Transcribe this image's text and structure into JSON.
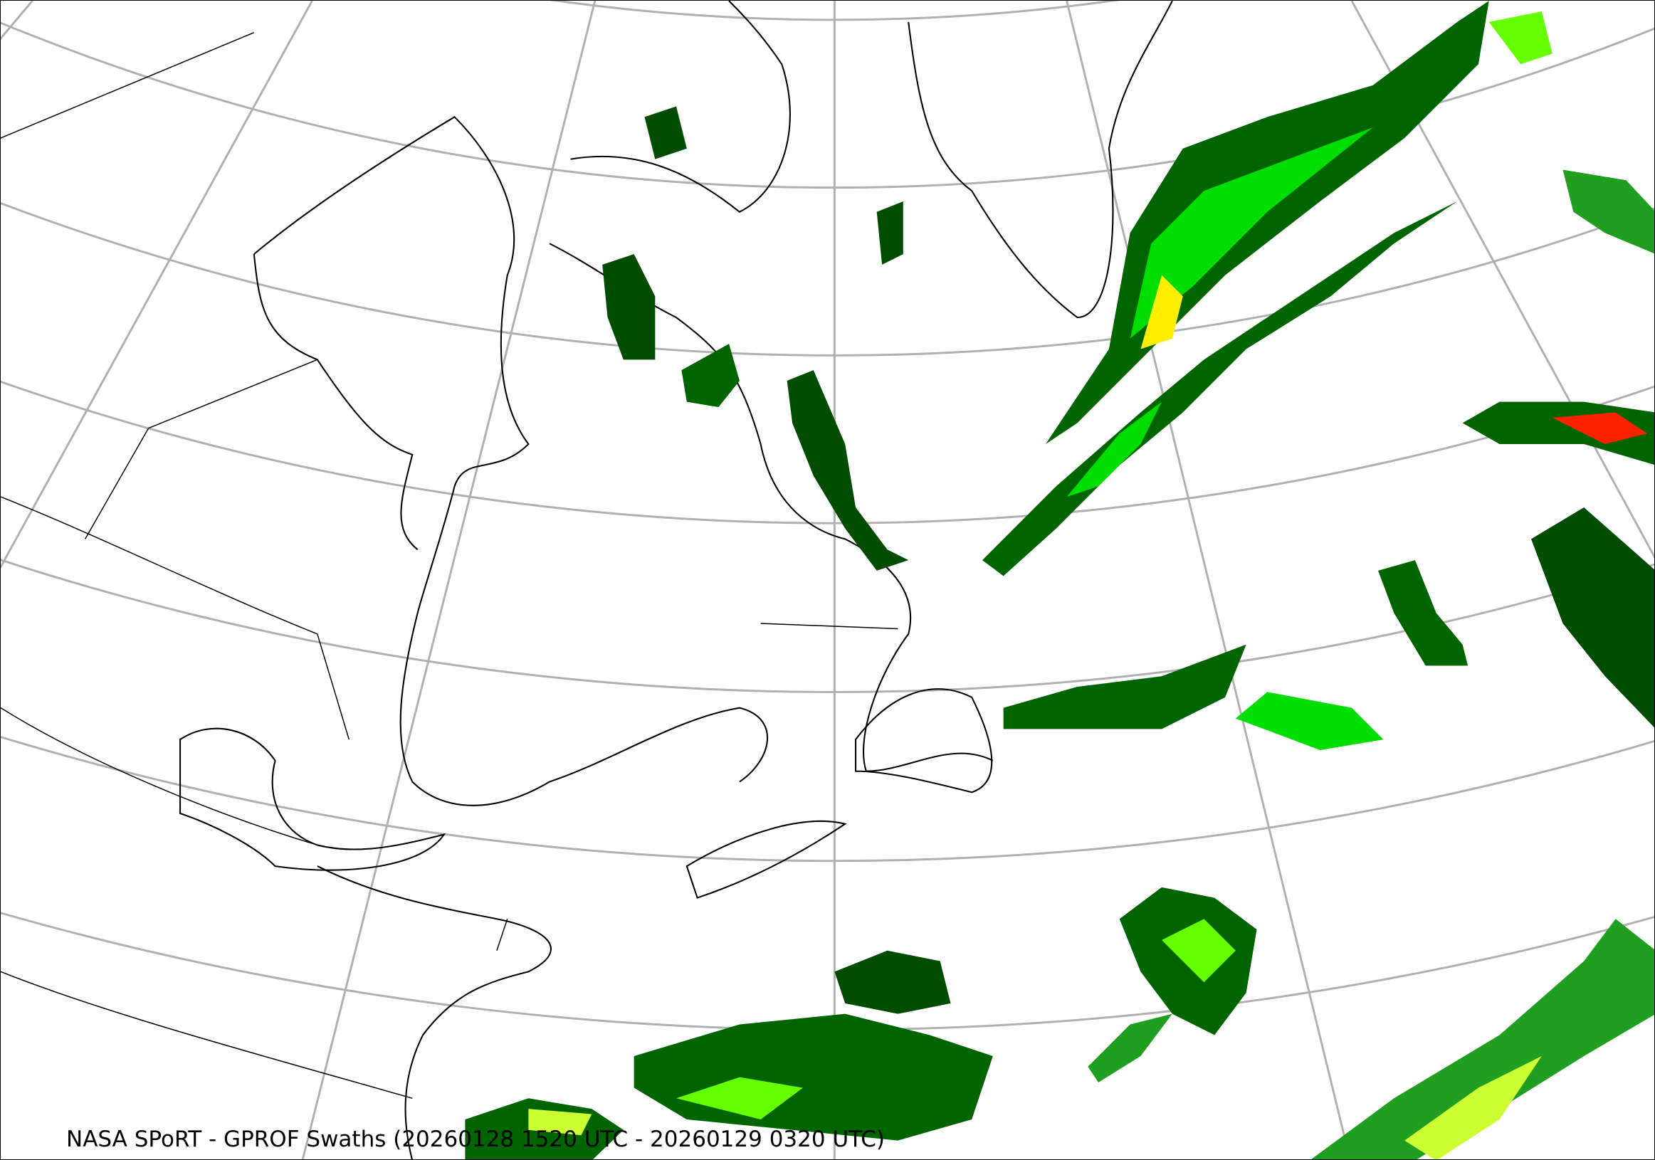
{
  "caption": "NASA SPoRT - GPROF Swaths (20260128 1520 UTC - 20260129 0320 UTC)",
  "map": {
    "projection": "lambert-conformal",
    "region": "Northeast North America / North Atlantic",
    "gridline_color": "#b0b0b0",
    "coastline_color": "#000000",
    "precip_colors": [
      "#004d00",
      "#006400",
      "#1f9e1f",
      "#00dd00",
      "#66ff00",
      "#ccff33",
      "#ffee00",
      "#ff9900",
      "#ff2200"
    ]
  }
}
